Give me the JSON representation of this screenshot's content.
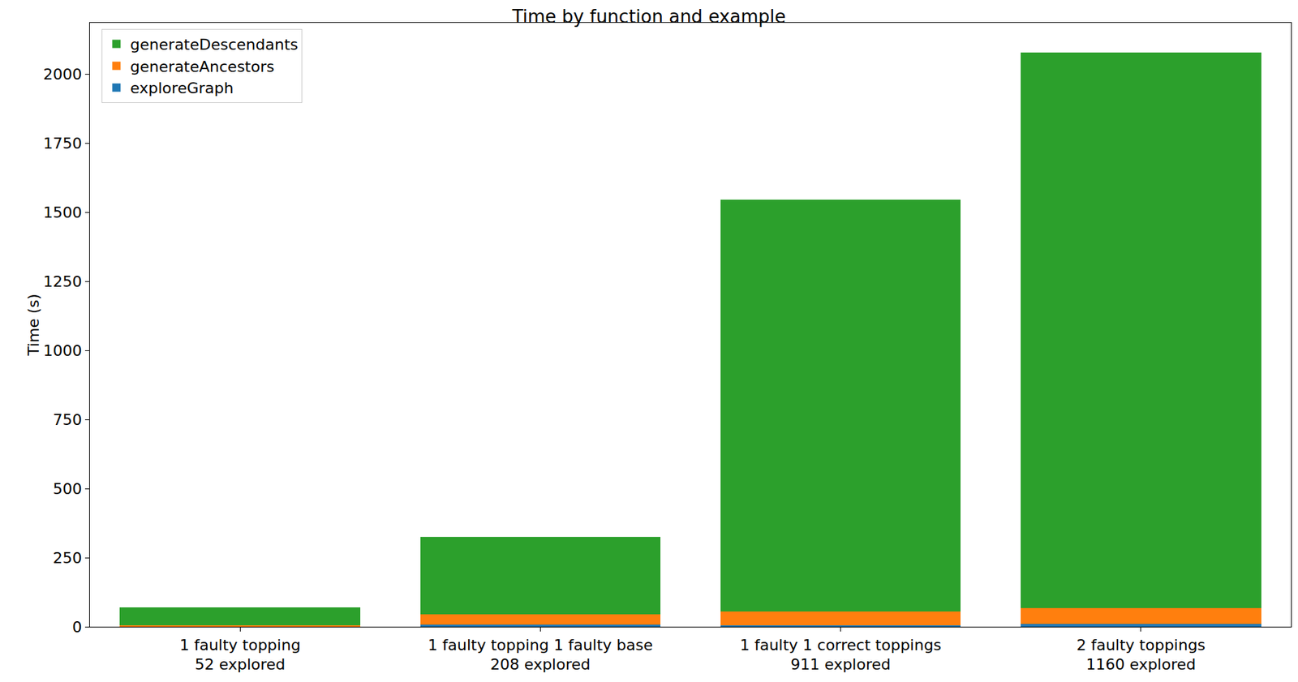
{
  "chart_data": {
    "type": "bar",
    "title": "Time by function and example",
    "y_label": "Time (s)",
    "categories": [
      "1 faulty topping\n52 explored",
      "1 faulty topping 1 faulty base\n208 explored",
      "1 faulty 1 correct toppings\n911 explored",
      "2 faulty toppings\n1160 explored"
    ],
    "series": [
      {
        "name": "exploreGraph",
        "color": "#1f77b4",
        "values": [
          2,
          8,
          6,
          10
        ]
      },
      {
        "name": "generateAncestors",
        "color": "#ff7f0e",
        "values": [
          4,
          36,
          50,
          58
        ]
      },
      {
        "name": "generateDescendants",
        "color": "#2ca02c",
        "values": [
          65,
          282,
          1488,
          2009
        ]
      }
    ],
    "stacked": true,
    "ylim": [
      0,
      2185
    ],
    "yticks": [
      0,
      250,
      500,
      750,
      1000,
      1250,
      1500,
      1750,
      2000
    ],
    "grid": false,
    "legend": "top-left"
  }
}
